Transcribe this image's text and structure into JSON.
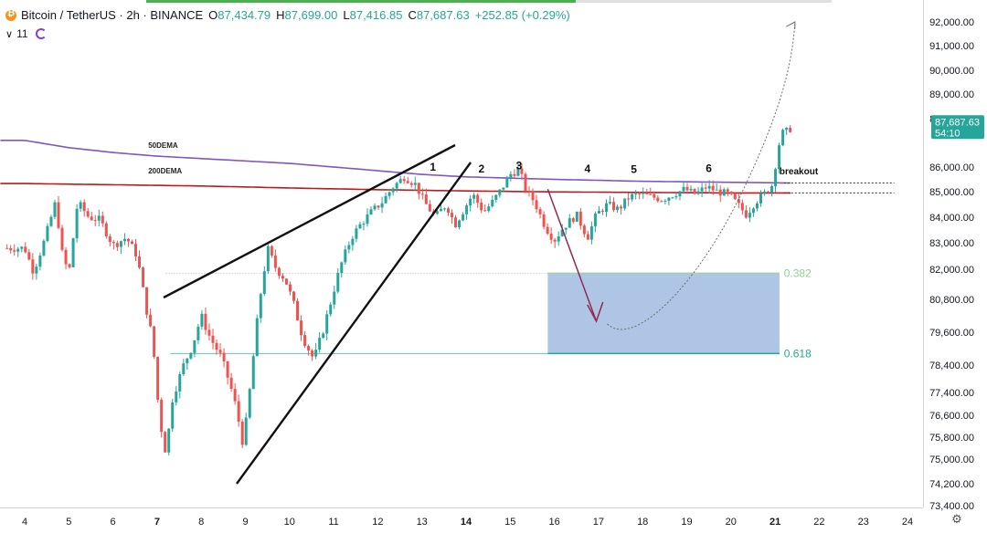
{
  "header": {
    "symbol": "Bitcoin / TetherUS · 2h · BINANCE",
    "open_label": "O",
    "open": "87,434.79",
    "high_label": "H",
    "high": "87,699.00",
    "low_label": "L",
    "low": "87,416.85",
    "close_label": "C",
    "close": "87,687.63",
    "change": "+252.85 (+0.29%)",
    "indicator_count": "11"
  },
  "colors": {
    "up": "#26a69a",
    "down": "#ef5350",
    "dema50": "#7e57c2",
    "dema200": "#b71c1c",
    "zone": "#6b95cf",
    "wedge": "#111111",
    "arrow": "#8e2b4f",
    "fib_line": "#9fd3a7"
  },
  "chart_data": {
    "type": "candlestick",
    "y_ticks": [
      "92,000.00",
      "91,000.00",
      "90,000.00",
      "89,000.00",
      "88,000.00",
      "86,000.00",
      "85,000.00",
      "84,000.00",
      "83,000.00",
      "82,000.00",
      "80,800.00",
      "79,600.00",
      "78,400.00",
      "77,400.00",
      "76,600.00",
      "75,800.00",
      "75,000.00",
      "74,200.00",
      "73,400.00"
    ],
    "x_ticks": [
      "4",
      "5",
      "6",
      "7",
      "8",
      "9",
      "10",
      "11",
      "12",
      "13",
      "14",
      "15",
      "16",
      "17",
      "18",
      "19",
      "20",
      "21",
      "22",
      "23",
      "24"
    ],
    "x_ticks_bold": [
      "7",
      "14",
      "21"
    ],
    "last_price": "87,687.63",
    "countdown": "54:10",
    "candle_keys": [
      [
        4.0,
        82800
      ],
      [
        4.2,
        81900
      ],
      [
        4.45,
        83100
      ],
      [
        4.7,
        84600
      ],
      [
        4.85,
        82600
      ],
      [
        5.0,
        81800
      ],
      [
        5.2,
        84600
      ],
      [
        5.45,
        84000
      ],
      [
        5.7,
        83900
      ],
      [
        6.0,
        82900
      ],
      [
        6.3,
        83200
      ],
      [
        6.55,
        82500
      ],
      [
        6.75,
        80500
      ],
      [
        6.9,
        79300
      ],
      [
        7.05,
        76500
      ],
      [
        7.2,
        75200
      ],
      [
        7.35,
        77200
      ],
      [
        7.6,
        78400
      ],
      [
        7.8,
        79100
      ],
      [
        8.0,
        80200
      ],
      [
        8.2,
        79400
      ],
      [
        8.45,
        78700
      ],
      [
        8.65,
        77700
      ],
      [
        8.8,
        76800
      ],
      [
        8.95,
        75500
      ],
      [
        9.1,
        77500
      ],
      [
        9.3,
        80500
      ],
      [
        9.5,
        82800
      ],
      [
        9.7,
        82000
      ],
      [
        9.9,
        81600
      ],
      [
        10.1,
        80600
      ],
      [
        10.3,
        79400
      ],
      [
        10.55,
        78600
      ],
      [
        10.75,
        79600
      ],
      [
        10.95,
        80800
      ],
      [
        11.15,
        82100
      ],
      [
        11.4,
        83200
      ],
      [
        11.6,
        83700
      ],
      [
        11.85,
        84200
      ],
      [
        12.1,
        84600
      ],
      [
        12.35,
        85200
      ],
      [
        12.6,
        85600
      ],
      [
        12.85,
        85300
      ],
      [
        13.05,
        84600
      ],
      [
        13.3,
        84000
      ],
      [
        13.55,
        84500
      ],
      [
        13.75,
        83700
      ],
      [
        13.95,
        84300
      ],
      [
        14.15,
        84900
      ],
      [
        14.4,
        84200
      ],
      [
        14.6,
        84600
      ],
      [
        14.8,
        85100
      ],
      [
        15.0,
        85700
      ],
      [
        15.2,
        85900
      ],
      [
        15.35,
        85100
      ],
      [
        15.55,
        84600
      ],
      [
        15.8,
        83600
      ],
      [
        16.0,
        83100
      ],
      [
        16.2,
        83600
      ],
      [
        16.5,
        84100
      ],
      [
        16.75,
        83200
      ],
      [
        16.95,
        84100
      ],
      [
        17.2,
        84500
      ],
      [
        17.45,
        84300
      ],
      [
        17.7,
        84800
      ],
      [
        17.95,
        84900
      ],
      [
        18.2,
        84800
      ],
      [
        18.45,
        84700
      ],
      [
        18.7,
        84900
      ],
      [
        18.95,
        85100
      ],
      [
        19.2,
        84900
      ],
      [
        19.45,
        85200
      ],
      [
        19.7,
        85000
      ],
      [
        19.95,
        84900
      ],
      [
        20.15,
        84500
      ],
      [
        20.35,
        84100
      ],
      [
        20.55,
        84600
      ],
      [
        20.75,
        84900
      ],
      [
        20.95,
        85300
      ],
      [
        21.05,
        86600
      ],
      [
        21.15,
        87400
      ],
      [
        21.3,
        87500
      ],
      [
        21.4,
        87688
      ]
    ],
    "ema50_keys": [
      [
        4,
        87100
      ],
      [
        5,
        86800
      ],
      [
        6,
        86600
      ],
      [
        7,
        86450
      ],
      [
        8,
        86350
      ],
      [
        9,
        86250
      ],
      [
        10,
        86150
      ],
      [
        11,
        86000
      ],
      [
        12,
        85850
      ],
      [
        13,
        85700
      ],
      [
        14,
        85600
      ],
      [
        15,
        85550
      ],
      [
        16,
        85500
      ],
      [
        17,
        85460
      ],
      [
        18,
        85420
      ],
      [
        19,
        85400
      ],
      [
        20,
        85380
      ],
      [
        21.4,
        85350
      ]
    ],
    "ema200_keys": [
      [
        4,
        85330
      ],
      [
        6,
        85280
      ],
      [
        8,
        85230
      ],
      [
        10,
        85150
      ],
      [
        12,
        85080
      ],
      [
        14,
        85030
      ],
      [
        16,
        84990
      ],
      [
        18,
        84970
      ],
      [
        20,
        84950
      ],
      [
        21.4,
        84950
      ]
    ],
    "labels": {
      "dema50": "50DEMA",
      "dema200": "200DEMA",
      "fib382": "0.382",
      "fib618": "0.618",
      "breakout": "breakout",
      "waves": [
        "1",
        "2",
        "3",
        "4",
        "5",
        "6"
      ]
    },
    "fib_levels": {
      "fib382": 81840,
      "fib618": 78820
    },
    "wave_points": [
      [
        13.25,
        86000
      ],
      [
        14.35,
        85920
      ],
      [
        15.2,
        86050
      ],
      [
        16.75,
        85920
      ],
      [
        17.8,
        85900
      ],
      [
        19.5,
        85940
      ]
    ],
    "breakout_level_upper": 85350,
    "breakout_level_lower": 84950
  }
}
